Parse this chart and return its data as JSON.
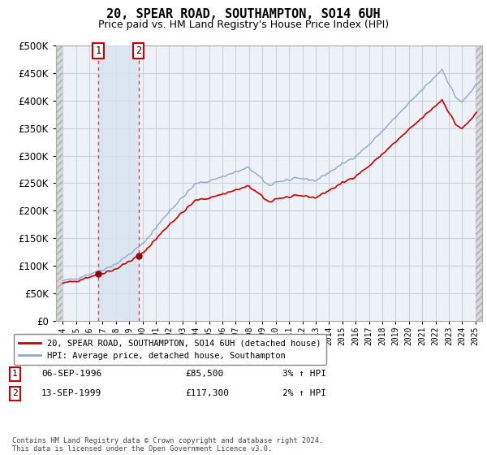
{
  "title": "20, SPEAR ROAD, SOUTHAMPTON, SO14 6UH",
  "subtitle": "Price paid vs. HM Land Registry's House Price Index (HPI)",
  "footer": "Contains HM Land Registry data © Crown copyright and database right 2024.\nThis data is licensed under the Open Government Licence v3.0.",
  "legend_line1": "20, SPEAR ROAD, SOUTHAMPTON, SO14 6UH (detached house)",
  "legend_line2": "HPI: Average price, detached house, Southampton",
  "transaction1_date": "06-SEP-1996",
  "transaction1_price": "£85,500",
  "transaction1_hpi": "3% ↑ HPI",
  "transaction1_year": 1996.67,
  "transaction1_value": 85500,
  "transaction2_date": "13-SEP-1999",
  "transaction2_price": "£117,300",
  "transaction2_hpi": "2% ↑ HPI",
  "transaction2_year": 1999.7,
  "transaction2_value": 117300,
  "ylim": [
    0,
    500000
  ],
  "yticks": [
    0,
    50000,
    100000,
    150000,
    200000,
    250000,
    300000,
    350000,
    400000,
    450000,
    500000
  ],
  "bg_color": "#ffffff",
  "plot_bg": "#eef2f8",
  "grid_color": "#c8d0dc",
  "line_color_red": "#cc0000",
  "line_color_blue": "#88aacc",
  "dot_color": "#990000",
  "shade_color": "#d8e4f0",
  "hatch_color": "#cccccc",
  "hatch_face": "#d8d8d8"
}
